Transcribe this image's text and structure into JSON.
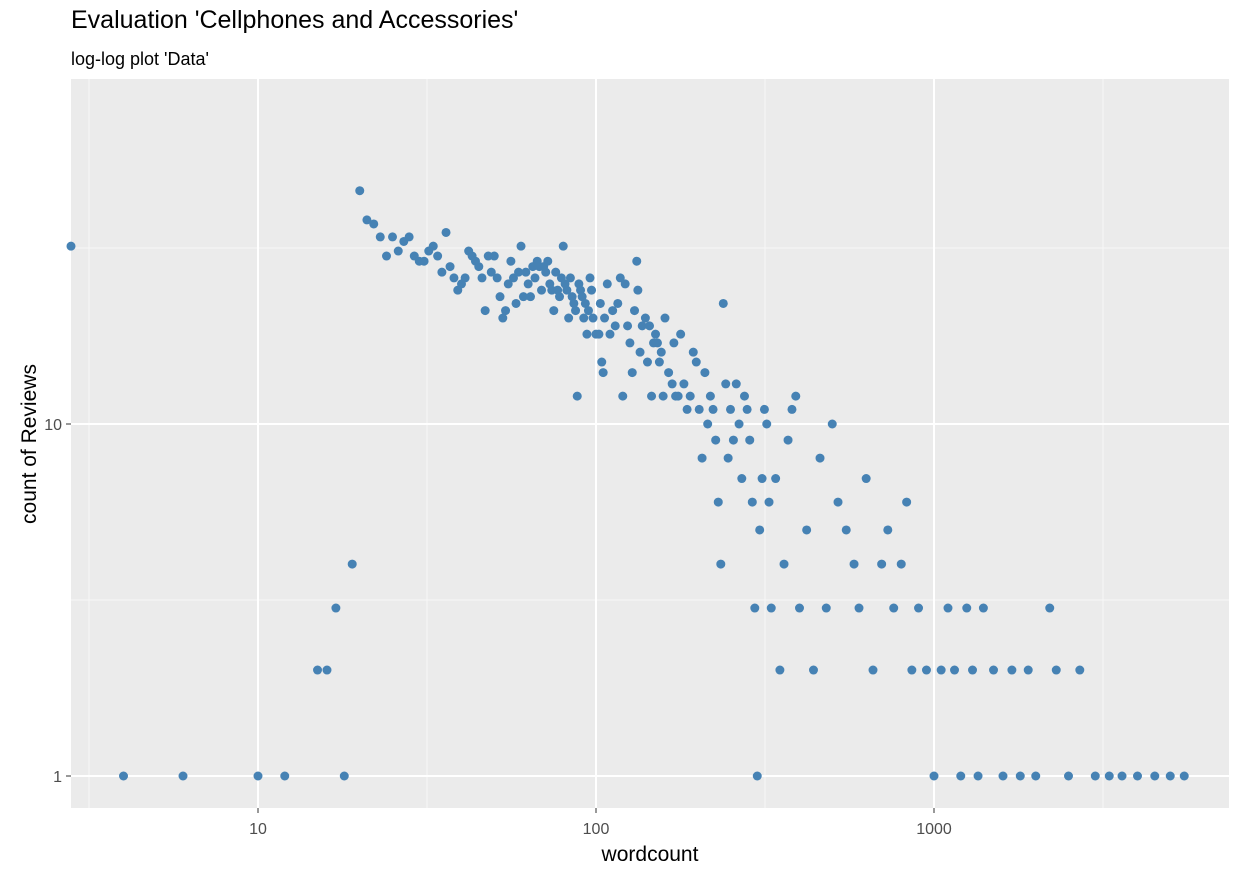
{
  "chart_data": {
    "type": "scatter",
    "title": "Evaluation 'Cellphones and Accessories'",
    "subtitle": "log-log plot 'Data'",
    "xlabel": "wordcount",
    "ylabel": "count of Reviews",
    "x_scale": "log",
    "y_scale": "log",
    "xlim": [
      2.7,
      6500
    ],
    "ylim": [
      0.9,
      60
    ],
    "x_ticks": [
      {
        "value": 10,
        "label": "10"
      },
      {
        "value": 100,
        "label": "100"
      },
      {
        "value": 1000,
        "label": "1000"
      }
    ],
    "y_ticks": [
      {
        "value": 1,
        "label": "1"
      },
      {
        "value": 10,
        "label": "10"
      }
    ],
    "grid": true,
    "panel_background": "#ebebeb",
    "point_color": "#4682b4",
    "points": [
      [
        2.7,
        32
      ],
      [
        20,
        46
      ],
      [
        21,
        38
      ],
      [
        22,
        37
      ],
      [
        23,
        34
      ],
      [
        24,
        30
      ],
      [
        25,
        34
      ],
      [
        26,
        31
      ],
      [
        27,
        33
      ],
      [
        28,
        34
      ],
      [
        29,
        30
      ],
      [
        30,
        29
      ],
      [
        31,
        29
      ],
      [
        32,
        31
      ],
      [
        33,
        32
      ],
      [
        34,
        30
      ],
      [
        35,
        27
      ],
      [
        36,
        35
      ],
      [
        37,
        28
      ],
      [
        38,
        26
      ],
      [
        39,
        24
      ],
      [
        40,
        25
      ],
      [
        41,
        26
      ],
      [
        42,
        31
      ],
      [
        43,
        30
      ],
      [
        44,
        29
      ],
      [
        45,
        28
      ],
      [
        46,
        26
      ],
      [
        47,
        21
      ],
      [
        48,
        30
      ],
      [
        49,
        27
      ],
      [
        50,
        30
      ],
      [
        51,
        26
      ],
      [
        52,
        23
      ],
      [
        53,
        20
      ],
      [
        54,
        21
      ],
      [
        55,
        25
      ],
      [
        56,
        29
      ],
      [
        57,
        26
      ],
      [
        58,
        22
      ],
      [
        59,
        27
      ],
      [
        60,
        32
      ],
      [
        61,
        23
      ],
      [
        62,
        27
      ],
      [
        63,
        25
      ],
      [
        64,
        23
      ],
      [
        65,
        28
      ],
      [
        66,
        26
      ],
      [
        67,
        29
      ],
      [
        68,
        28
      ],
      [
        69,
        24
      ],
      [
        70,
        28
      ],
      [
        71,
        27
      ],
      [
        72,
        29
      ],
      [
        73,
        25
      ],
      [
        74,
        24
      ],
      [
        75,
        21
      ],
      [
        76,
        27
      ],
      [
        77,
        24
      ],
      [
        78,
        23
      ],
      [
        79,
        26
      ],
      [
        80,
        32
      ],
      [
        81,
        25
      ],
      [
        82,
        24
      ],
      [
        83,
        20
      ],
      [
        84,
        26
      ],
      [
        85,
        23
      ],
      [
        86,
        22
      ],
      [
        87,
        21
      ],
      [
        88,
        12
      ],
      [
        89,
        25
      ],
      [
        90,
        24
      ],
      [
        91,
        23
      ],
      [
        92,
        20
      ],
      [
        93,
        22
      ],
      [
        94,
        18
      ],
      [
        95,
        21
      ],
      [
        96,
        26
      ],
      [
        97,
        24
      ],
      [
        98,
        20
      ],
      [
        100,
        18
      ],
      [
        102,
        18
      ],
      [
        103,
        22
      ],
      [
        104,
        15
      ],
      [
        105,
        14
      ],
      [
        106,
        20
      ],
      [
        108,
        25
      ],
      [
        110,
        18
      ],
      [
        112,
        21
      ],
      [
        114,
        19
      ],
      [
        116,
        22
      ],
      [
        118,
        26
      ],
      [
        120,
        12
      ],
      [
        122,
        25
      ],
      [
        124,
        19
      ],
      [
        126,
        17
      ],
      [
        128,
        14
      ],
      [
        130,
        21
      ],
      [
        132,
        29
      ],
      [
        133,
        24
      ],
      [
        135,
        16
      ],
      [
        137,
        19
      ],
      [
        140,
        20
      ],
      [
        142,
        15
      ],
      [
        144,
        19
      ],
      [
        146,
        12
      ],
      [
        148,
        17
      ],
      [
        150,
        18
      ],
      [
        152,
        17
      ],
      [
        154,
        15
      ],
      [
        156,
        16
      ],
      [
        158,
        12
      ],
      [
        160,
        20
      ],
      [
        164,
        14
      ],
      [
        168,
        13
      ],
      [
        170,
        17
      ],
      [
        172,
        12
      ],
      [
        175,
        12
      ],
      [
        178,
        18
      ],
      [
        182,
        13
      ],
      [
        186,
        11
      ],
      [
        190,
        12
      ],
      [
        194,
        16
      ],
      [
        198,
        15
      ],
      [
        202,
        11
      ],
      [
        206,
        8
      ],
      [
        210,
        14
      ],
      [
        214,
        10
      ],
      [
        218,
        12
      ],
      [
        222,
        11
      ],
      [
        226,
        9
      ],
      [
        230,
        6
      ],
      [
        234,
        4
      ],
      [
        238,
        22
      ],
      [
        242,
        13
      ],
      [
        246,
        8
      ],
      [
        250,
        11
      ],
      [
        255,
        9
      ],
      [
        260,
        13
      ],
      [
        265,
        10
      ],
      [
        270,
        7
      ],
      [
        275,
        12
      ],
      [
        280,
        11
      ],
      [
        285,
        9
      ],
      [
        290,
        6
      ],
      [
        295,
        3
      ],
      [
        300,
        1
      ],
      [
        305,
        5
      ],
      [
        310,
        7
      ],
      [
        315,
        11
      ],
      [
        320,
        10
      ],
      [
        325,
        6
      ],
      [
        330,
        3
      ],
      [
        340,
        7
      ],
      [
        350,
        2
      ],
      [
        360,
        4
      ],
      [
        370,
        9
      ],
      [
        380,
        11
      ],
      [
        390,
        12
      ],
      [
        400,
        3
      ],
      [
        420,
        5
      ],
      [
        440,
        2
      ],
      [
        460,
        8
      ],
      [
        480,
        3
      ],
      [
        500,
        10
      ],
      [
        520,
        6
      ],
      [
        550,
        5
      ],
      [
        580,
        4
      ],
      [
        600,
        3
      ],
      [
        630,
        7
      ],
      [
        660,
        2
      ],
      [
        700,
        4
      ],
      [
        730,
        5
      ],
      [
        760,
        3
      ],
      [
        800,
        4
      ],
      [
        830,
        6
      ],
      [
        860,
        2
      ],
      [
        900,
        3
      ],
      [
        950,
        2
      ],
      [
        1000,
        1
      ],
      [
        1050,
        2
      ],
      [
        1100,
        3
      ],
      [
        1150,
        2
      ],
      [
        1200,
        1
      ],
      [
        1250,
        3
      ],
      [
        1300,
        2
      ],
      [
        1350,
        1
      ],
      [
        1400,
        3
      ],
      [
        1500,
        2
      ],
      [
        1600,
        1
      ],
      [
        1700,
        2
      ],
      [
        1800,
        1
      ],
      [
        1900,
        2
      ],
      [
        2000,
        1
      ],
      [
        2200,
        3
      ],
      [
        2300,
        2
      ],
      [
        2500,
        1
      ],
      [
        2700,
        2
      ],
      [
        3000,
        1
      ],
      [
        3300,
        1
      ],
      [
        3600,
        1
      ],
      [
        4000,
        1
      ],
      [
        4500,
        1
      ],
      [
        5000,
        1
      ],
      [
        5500,
        1
      ],
      [
        4,
        1
      ],
      [
        6,
        1
      ],
      [
        10,
        1
      ],
      [
        12,
        1
      ],
      [
        15,
        2
      ],
      [
        16,
        2
      ],
      [
        17,
        3
      ],
      [
        18,
        1
      ],
      [
        19,
        4
      ]
    ]
  }
}
